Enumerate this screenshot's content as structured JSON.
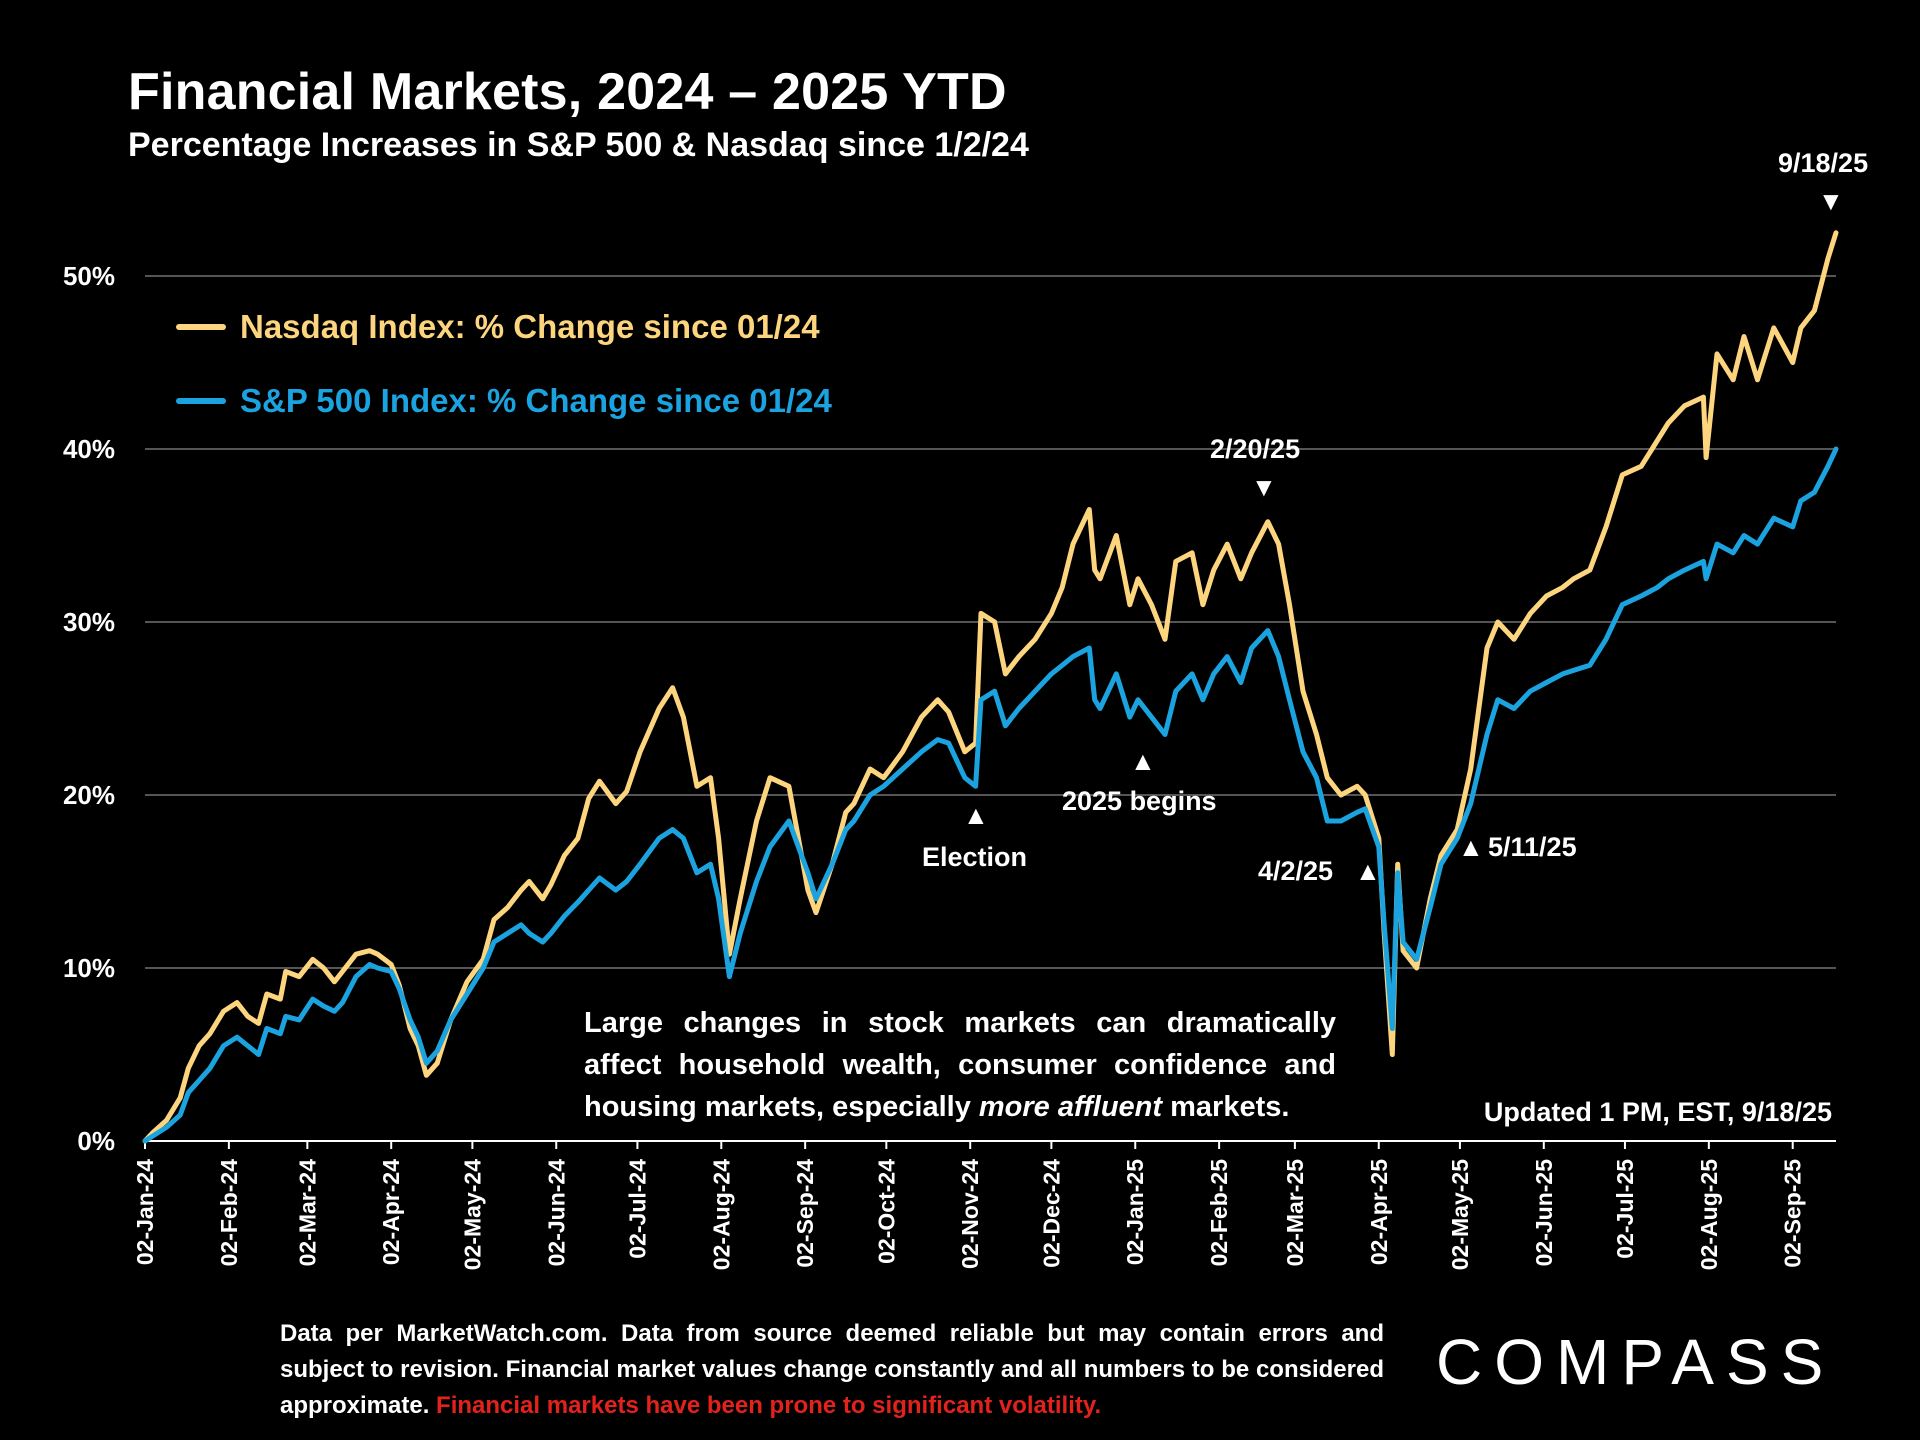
{
  "title": "Financial Markets, 2024 – 2025 YTD",
  "subtitle": "Percentage Increases in S&P 500 & Nasdaq since 1/2/24",
  "legend": {
    "nasdaq": "Nasdaq Index: % Change since 01/24",
    "sp500": "S&P 500 Index: % Change since 01/24"
  },
  "annotations": {
    "end_date": "9/18/25",
    "peak": "2/20/25",
    "election": "Election",
    "begins": "2025 begins",
    "apr2": "4/2/25",
    "may11": "5/11/25",
    "up_arrow": "▲",
    "down_arrow": "▼"
  },
  "note": {
    "text_before": "Large changes in stock markets can dramatically affect household wealth, consumer confidence and housing markets, especially ",
    "text_italic": "more affluent",
    "text_after": " markets."
  },
  "updated": "Updated 1 PM, EST, 9/18/25",
  "footer": {
    "text": "Data per MarketWatch.com. Data from source deemed reliable but may contain errors and subject to revision. Financial market values change constantly and all numbers to be considered approximate. ",
    "warning": "Financial markets have been prone to significant volatility."
  },
  "logo": "COMPASS",
  "colors": {
    "nasdaq": "#fdd57e",
    "sp500": "#1ba3e0",
    "background": "#000000",
    "grid": "#555555",
    "warning": "#e3221c"
  },
  "chart_data": {
    "type": "line",
    "title": "Financial Markets, 2024 – 2025 YTD",
    "subtitle": "Percentage Increases in S&P 500 & Nasdaq since 1/2/24",
    "xlabel": "",
    "ylabel": "",
    "ylim": [
      0,
      50
    ],
    "y_ticks": [
      "0%",
      "10%",
      "20%",
      "30%",
      "40%",
      "50%"
    ],
    "x_range": [
      "2024-01-02",
      "2025-09-18"
    ],
    "x_ticks": [
      "02-Jan-24",
      "02-Feb-24",
      "02-Mar-24",
      "02-Apr-24",
      "02-May-24",
      "02-Jun-24",
      "02-Jul-24",
      "02-Aug-24",
      "02-Sep-24",
      "02-Oct-24",
      "02-Nov-24",
      "02-Dec-24",
      "02-Jan-25",
      "02-Feb-25",
      "02-Mar-25",
      "02-Apr-25",
      "02-May-25",
      "02-Jun-25",
      "02-Jul-25",
      "02-Aug-25",
      "02-Sep-25"
    ],
    "grid": true,
    "legend_position": "top-left",
    "series": [
      {
        "name": "Nasdaq Index: % Change since 01/24",
        "x": [
          "2024-01-02",
          "2024-01-05",
          "2024-01-10",
          "2024-01-15",
          "2024-01-18",
          "2024-01-22",
          "2024-01-26",
          "2024-01-31",
          "2024-02-05",
          "2024-02-09",
          "2024-02-13",
          "2024-02-16",
          "2024-02-21",
          "2024-02-23",
          "2024-02-28",
          "2024-03-04",
          "2024-03-08",
          "2024-03-12",
          "2024-03-15",
          "2024-03-20",
          "2024-03-25",
          "2024-03-28",
          "2024-04-02",
          "2024-04-05",
          "2024-04-09",
          "2024-04-12",
          "2024-04-15",
          "2024-04-19",
          "2024-04-24",
          "2024-04-30",
          "2024-05-06",
          "2024-05-10",
          "2024-05-15",
          "2024-05-20",
          "2024-05-23",
          "2024-05-28",
          "2024-05-31",
          "2024-06-05",
          "2024-06-10",
          "2024-06-14",
          "2024-06-18",
          "2024-06-24",
          "2024-06-28",
          "2024-07-03",
          "2024-07-10",
          "2024-07-15",
          "2024-07-19",
          "2024-07-24",
          "2024-07-29",
          "2024-08-01",
          "2024-08-05",
          "2024-08-09",
          "2024-08-15",
          "2024-08-20",
          "2024-08-27",
          "2024-09-03",
          "2024-09-06",
          "2024-09-12",
          "2024-09-17",
          "2024-09-20",
          "2024-09-26",
          "2024-10-01",
          "2024-10-08",
          "2024-10-15",
          "2024-10-21",
          "2024-10-25",
          "2024-10-31",
          "2024-11-04",
          "2024-11-06",
          "2024-11-11",
          "2024-11-15",
          "2024-11-20",
          "2024-11-26",
          "2024-12-02",
          "2024-12-06",
          "2024-12-10",
          "2024-12-16",
          "2024-12-18",
          "2024-12-20",
          "2024-12-26",
          "2024-12-31",
          "2025-01-03",
          "2025-01-08",
          "2025-01-13",
          "2025-01-17",
          "2025-01-23",
          "2025-01-27",
          "2025-01-31",
          "2025-02-05",
          "2025-02-10",
          "2025-02-14",
          "2025-02-20",
          "2025-02-24",
          "2025-02-28",
          "2025-03-05",
          "2025-03-10",
          "2025-03-14",
          "2025-03-19",
          "2025-03-25",
          "2025-03-28",
          "2025-04-02",
          "2025-04-04",
          "2025-04-07",
          "2025-04-09",
          "2025-04-11",
          "2025-04-16",
          "2025-04-21",
          "2025-04-25",
          "2025-05-01",
          "2025-05-06",
          "2025-05-12",
          "2025-05-16",
          "2025-05-22",
          "2025-05-28",
          "2025-06-03",
          "2025-06-09",
          "2025-06-13",
          "2025-06-19",
          "2025-06-25",
          "2025-07-01",
          "2025-07-08",
          "2025-07-14",
          "2025-07-18",
          "2025-07-24",
          "2025-07-31",
          "2025-08-01",
          "2025-08-05",
          "2025-08-11",
          "2025-08-15",
          "2025-08-20",
          "2025-08-26",
          "2025-09-02",
          "2025-09-05",
          "2025-09-10",
          "2025-09-15",
          "2025-09-18"
        ],
        "values": [
          0,
          0.5,
          1.2,
          2.5,
          4.2,
          5.5,
          6.2,
          7.5,
          8.0,
          7.2,
          6.8,
          8.5,
          8.2,
          9.8,
          9.5,
          10.5,
          10.0,
          9.2,
          9.8,
          10.8,
          11.0,
          10.8,
          10.2,
          9.0,
          6.5,
          5.5,
          3.8,
          4.5,
          7.0,
          9.2,
          10.5,
          12.8,
          13.5,
          14.5,
          15.0,
          14.0,
          14.8,
          16.5,
          17.5,
          19.8,
          20.8,
          19.5,
          20.2,
          22.5,
          25.0,
          26.2,
          24.5,
          20.5,
          21.0,
          17.5,
          10.8,
          14.0,
          18.5,
          21.0,
          20.5,
          14.5,
          13.2,
          16.0,
          19.0,
          19.5,
          21.5,
          21.0,
          22.5,
          24.5,
          25.5,
          24.8,
          22.5,
          23.0,
          30.5,
          30.0,
          27.0,
          28.0,
          29.0,
          30.5,
          32.0,
          34.5,
          36.5,
          33.0,
          32.5,
          35.0,
          31.0,
          32.5,
          31.0,
          29.0,
          33.5,
          34.0,
          31.0,
          33.0,
          34.5,
          32.5,
          34.0,
          35.8,
          34.5,
          31.0,
          26.0,
          23.5,
          21.0,
          20.0,
          20.5,
          20.0,
          17.5,
          12.0,
          5.0,
          16.0,
          11.0,
          10.0,
          14.0,
          16.5,
          18.0,
          21.5,
          28.5,
          30.0,
          29.0,
          30.5,
          31.5,
          32.0,
          32.5,
          33.0,
          35.5,
          38.5,
          39.0,
          40.5,
          41.5,
          42.5,
          43.0,
          39.5,
          45.5,
          44.0,
          46.5,
          44.0,
          47.0,
          45.0,
          47.0,
          48.0,
          51.0,
          52.5
        ]
      },
      {
        "name": "S&P 500 Index: % Change since 01/24",
        "x": [
          "2024-01-02",
          "2024-01-05",
          "2024-01-10",
          "2024-01-15",
          "2024-01-18",
          "2024-01-22",
          "2024-01-26",
          "2024-01-31",
          "2024-02-05",
          "2024-02-09",
          "2024-02-13",
          "2024-02-16",
          "2024-02-21",
          "2024-02-23",
          "2024-02-28",
          "2024-03-04",
          "2024-03-08",
          "2024-03-12",
          "2024-03-15",
          "2024-03-20",
          "2024-03-25",
          "2024-03-28",
          "2024-04-02",
          "2024-04-05",
          "2024-04-09",
          "2024-04-12",
          "2024-04-15",
          "2024-04-19",
          "2024-04-24",
          "2024-04-30",
          "2024-05-06",
          "2024-05-10",
          "2024-05-15",
          "2024-05-20",
          "2024-05-23",
          "2024-05-28",
          "2024-05-31",
          "2024-06-05",
          "2024-06-10",
          "2024-06-14",
          "2024-06-18",
          "2024-06-24",
          "2024-06-28",
          "2024-07-03",
          "2024-07-10",
          "2024-07-15",
          "2024-07-19",
          "2024-07-24",
          "2024-07-29",
          "2024-08-01",
          "2024-08-05",
          "2024-08-09",
          "2024-08-15",
          "2024-08-20",
          "2024-08-27",
          "2024-09-03",
          "2024-09-06",
          "2024-09-12",
          "2024-09-17",
          "2024-09-20",
          "2024-09-26",
          "2024-10-01",
          "2024-10-08",
          "2024-10-15",
          "2024-10-21",
          "2024-10-25",
          "2024-10-31",
          "2024-11-04",
          "2024-11-06",
          "2024-11-11",
          "2024-11-15",
          "2024-11-20",
          "2024-11-26",
          "2024-12-02",
          "2024-12-06",
          "2024-12-10",
          "2024-12-16",
          "2024-12-18",
          "2024-12-20",
          "2024-12-26",
          "2024-12-31",
          "2025-01-03",
          "2025-01-08",
          "2025-01-13",
          "2025-01-17",
          "2025-01-23",
          "2025-01-27",
          "2025-01-31",
          "2025-02-05",
          "2025-02-10",
          "2025-02-14",
          "2025-02-20",
          "2025-02-24",
          "2025-02-28",
          "2025-03-05",
          "2025-03-10",
          "2025-03-14",
          "2025-03-19",
          "2025-03-25",
          "2025-03-28",
          "2025-04-02",
          "2025-04-04",
          "2025-04-07",
          "2025-04-09",
          "2025-04-11",
          "2025-04-16",
          "2025-04-21",
          "2025-04-25",
          "2025-05-01",
          "2025-05-06",
          "2025-05-12",
          "2025-05-16",
          "2025-05-22",
          "2025-05-28",
          "2025-06-03",
          "2025-06-09",
          "2025-06-13",
          "2025-06-19",
          "2025-06-25",
          "2025-07-01",
          "2025-07-08",
          "2025-07-14",
          "2025-07-18",
          "2025-07-24",
          "2025-07-31",
          "2025-08-01",
          "2025-08-05",
          "2025-08-11",
          "2025-08-15",
          "2025-08-20",
          "2025-08-26",
          "2025-09-02",
          "2025-09-05",
          "2025-09-10",
          "2025-09-15",
          "2025-09-18"
        ],
        "values": [
          0,
          0.3,
          0.8,
          1.5,
          2.8,
          3.5,
          4.2,
          5.5,
          6.0,
          5.5,
          5.0,
          6.5,
          6.2,
          7.2,
          7.0,
          8.2,
          7.8,
          7.5,
          8.0,
          9.5,
          10.2,
          10.0,
          9.8,
          8.8,
          7.0,
          6.0,
          4.5,
          5.2,
          7.0,
          8.5,
          10.0,
          11.5,
          12.0,
          12.5,
          12.0,
          11.5,
          12.0,
          13.0,
          13.8,
          14.5,
          15.2,
          14.5,
          15.0,
          16.0,
          17.5,
          18.0,
          17.5,
          15.5,
          16.0,
          14.0,
          9.5,
          12.0,
          15.0,
          17.0,
          18.5,
          15.5,
          14.0,
          16.0,
          18.0,
          18.5,
          20.0,
          20.5,
          21.5,
          22.5,
          23.2,
          23.0,
          21.0,
          20.5,
          25.5,
          26.0,
          24.0,
          25.0,
          26.0,
          27.0,
          27.5,
          28.0,
          28.5,
          25.5,
          25.0,
          27.0,
          24.5,
          25.5,
          24.5,
          23.5,
          26.0,
          27.0,
          25.5,
          27.0,
          28.0,
          26.5,
          28.5,
          29.5,
          28.0,
          25.5,
          22.5,
          21.0,
          18.5,
          18.5,
          19.0,
          19.2,
          17.0,
          12.5,
          6.5,
          15.5,
          11.5,
          10.5,
          13.5,
          16.0,
          17.5,
          19.5,
          23.5,
          25.5,
          25.0,
          26.0,
          26.5,
          27.0,
          27.2,
          27.5,
          29.0,
          31.0,
          31.5,
          32.0,
          32.5,
          33.0,
          33.5,
          32.5,
          34.5,
          34.0,
          35.0,
          34.5,
          36.0,
          35.5,
          37.0,
          37.5,
          39.0,
          40.0
        ]
      }
    ]
  }
}
